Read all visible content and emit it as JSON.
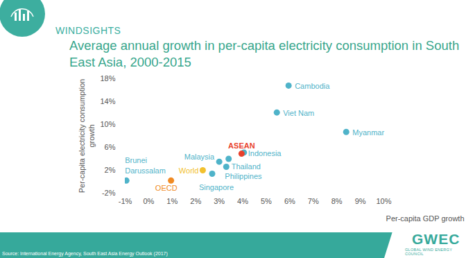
{
  "chart_data": {
    "type": "scatter",
    "header": "WINDSIGHTS",
    "title": "Average annual growth in per-capita electricity consumption in South East Asia, 2000-2015",
    "x_label": "Per-capita GDP growth",
    "y_label": "Per-capita electricity consumption growth",
    "source": "Source: International Energy Agency, South East Asia Energy Outlook (2017)",
    "logo": "GWEC",
    "logo_subtitle": "GLOBAL WIND ENERGY COUNCIL",
    "labels": [
      "Cambodia",
      "Viet Nam",
      "Myanmar",
      "Indonesia",
      "ASEAN",
      "Malaysia",
      "Thailand",
      "Philippines",
      "Singapore",
      "World",
      "OECD",
      "Brunei Darussalam"
    ],
    "x": [
      5.95,
      5.45,
      8.4,
      4.05,
      3.95,
      3.0,
      3.4,
      3.3,
      2.7,
      2.3,
      0.95,
      -0.95
    ],
    "values": [
      16.8,
      12.1,
      8.7,
      5.1,
      4.9,
      3.5,
      4.0,
      2.6,
      1.4,
      2.0,
      0.2,
      0.2
    ],
    "colors": [
      "#4fb3c9",
      "#4fb3c9",
      "#4fb3c9",
      "#4fb3c9",
      "#e8412c",
      "#4fb3c9",
      "#4fb3c9",
      "#4fb3c9",
      "#4fb3c9",
      "#f2c12e",
      "#f08a24",
      "#4fb3c9"
    ],
    "xlim": [
      -1,
      10
    ],
    "xticks": [
      {
        "value": -1,
        "label": "-1%"
      },
      {
        "value": 0,
        "label": "0%"
      },
      {
        "value": 1,
        "label": "1%"
      },
      {
        "value": 2,
        "label": "2%"
      },
      {
        "value": 3,
        "label": "3%"
      },
      {
        "value": 4,
        "label": "4%"
      },
      {
        "value": 5,
        "label": "5%"
      },
      {
        "value": 6,
        "label": "6%"
      },
      {
        "value": 7,
        "label": "7%"
      },
      {
        "value": 8,
        "label": "8%"
      },
      {
        "value": 9,
        "label": "9%"
      },
      {
        "value": 10,
        "label": "10%"
      }
    ],
    "ylim": [
      -2,
      18
    ],
    "yticks": [
      {
        "value": -2,
        "label": "-2%"
      },
      {
        "value": 2,
        "label": "2%"
      },
      {
        "value": 6,
        "label": "6%"
      },
      {
        "value": 10,
        "label": "10%"
      },
      {
        "value": 14,
        "label": "14%"
      },
      {
        "value": 18,
        "label": "18%"
      }
    ],
    "grid": false
  }
}
